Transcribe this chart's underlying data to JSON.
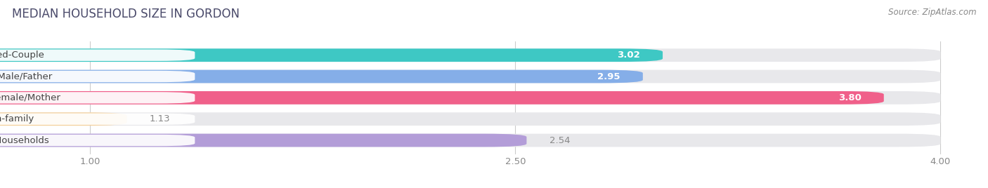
{
  "title": "MEDIAN HOUSEHOLD SIZE IN GORDON",
  "source": "Source: ZipAtlas.com",
  "categories": [
    "Married-Couple",
    "Single Male/Father",
    "Single Female/Mother",
    "Non-family",
    "Total Households"
  ],
  "values": [
    3.02,
    2.95,
    3.8,
    1.13,
    2.54
  ],
  "colors": [
    "#3EC8C4",
    "#85AEE8",
    "#F0608A",
    "#F5D09A",
    "#B39DD8"
  ],
  "label_text_colors": [
    "#555555",
    "#555555",
    "#d63070",
    "#b8860b",
    "#555555"
  ],
  "value_inside": [
    true,
    true,
    true,
    false,
    false
  ],
  "xlim_display": [
    0.7,
    4.15
  ],
  "xlim_data": [
    0,
    4.0
  ],
  "xticks": [
    1.0,
    2.5,
    4.0
  ],
  "bar_height": 0.62,
  "background_color": "#ffffff",
  "bar_bg_color": "#e8e8eb",
  "title_fontsize": 12,
  "label_fontsize": 9.5,
  "value_fontsize": 9.5,
  "source_fontsize": 8.5,
  "label_pill_color": "#ffffff",
  "value_outside_color": "#888888"
}
